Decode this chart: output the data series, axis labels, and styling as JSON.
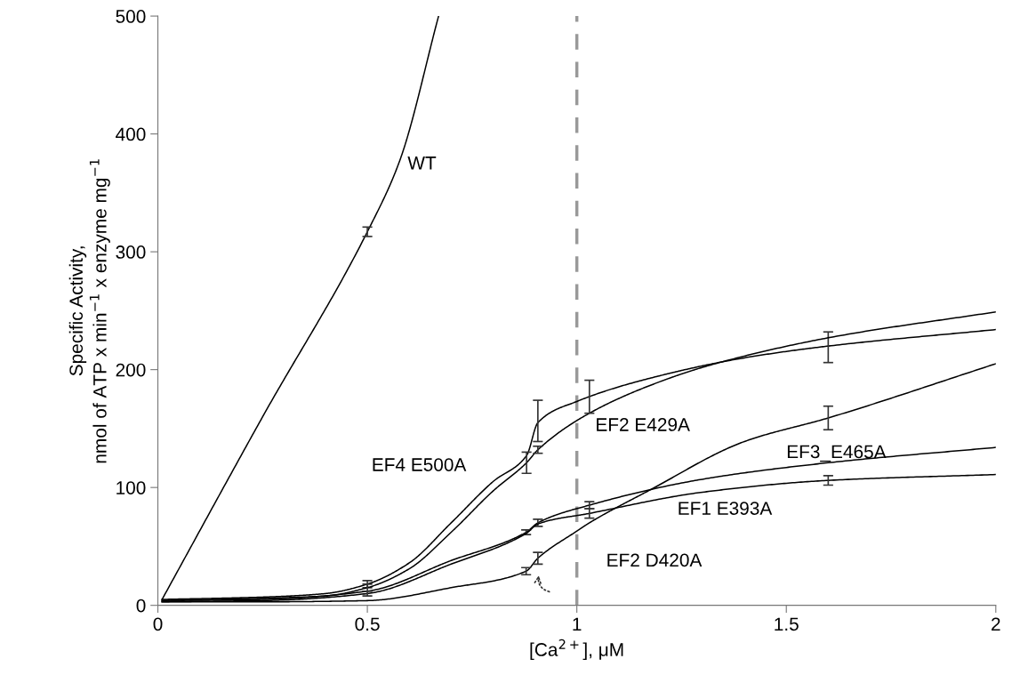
{
  "chart_data": {
    "type": "line",
    "xlabel": "[Ca$^{2+}$], μM",
    "ylabel": "Specific Activity,\nnmol of ATP x min$^{−1}$ x enzyme mg$^{−1}$",
    "xlim": [
      0,
      2
    ],
    "xticks": [
      0,
      0.5,
      1,
      1.5,
      2
    ],
    "ylim": [
      0,
      500
    ],
    "yticks": [
      0,
      100,
      200,
      300,
      400,
      500
    ],
    "grid": false,
    "legend": false,
    "marker": "none",
    "line_style": "solid",
    "series": [
      {
        "name": "WT",
        "color": "#000000",
        "x": [
          0.01,
          0.25,
          0.5,
          0.578,
          0.67
        ],
        "values": [
          5,
          160,
          317,
          378,
          500
        ],
        "errors": [
          null,
          null,
          4,
          null,
          null
        ]
      },
      {
        "name": "EF4 E500A",
        "color": "#000000",
        "x": [
          0.01,
          0.25,
          0.4,
          0.5,
          0.6,
          0.7,
          0.8,
          0.88,
          0.907,
          1.0,
          1.2,
          1.4,
          1.6,
          2.0
        ],
        "values": [
          5,
          7,
          10,
          18,
          36,
          70,
          105,
          127,
          155,
          173,
          195,
          210,
          220,
          234
        ],
        "errors": [
          null,
          null,
          null,
          3,
          null,
          null,
          null,
          null,
          [
            139,
            174
          ],
          null,
          null,
          null,
          [
            206,
            232
          ],
          null
        ]
      },
      {
        "name": "EF2 E429A",
        "color": "#000000",
        "x": [
          0.01,
          0.25,
          0.4,
          0.5,
          0.6,
          0.7,
          0.8,
          0.88,
          0.907,
          1.03,
          1.2,
          1.33,
          1.6,
          2.0
        ],
        "values": [
          4,
          6,
          8,
          15,
          31,
          62,
          97,
          121,
          132,
          163,
          190,
          205,
          227,
          249
        ],
        "errors": [
          null,
          null,
          null,
          3,
          null,
          null,
          null,
          9,
          3,
          [
            163,
            191
          ],
          null,
          null,
          null,
          null
        ]
      },
      {
        "name": "EF3_E465A",
        "color": "#000000",
        "x": [
          0.01,
          0.25,
          0.5,
          0.7,
          0.879,
          0.907,
          1.03,
          1.3,
          1.6,
          2.0
        ],
        "values": [
          4,
          5,
          12,
          38,
          62,
          70,
          85,
          107,
          121,
          134
        ],
        "errors": [
          null,
          null,
          null,
          null,
          2,
          3,
          3,
          null,
          null,
          null
        ]
      },
      {
        "name": "EF1 E393A",
        "color": "#000000",
        "x": [
          0.01,
          0.25,
          0.5,
          0.7,
          0.879,
          0.907,
          1.03,
          1.3,
          1.6,
          2.0
        ],
        "values": [
          3,
          4,
          10,
          35,
          61,
          69,
          78,
          96,
          106,
          111
        ],
        "errors": [
          null,
          null,
          2,
          null,
          null,
          null,
          4,
          null,
          4,
          null
        ]
      },
      {
        "name": "EF2 D420A",
        "color": "#000000",
        "x": [
          0.01,
          0.25,
          0.5,
          0.7,
          0.879,
          0.907,
          1.0,
          1.03,
          1.17,
          1.4,
          1.6,
          2.0
        ],
        "values": [
          3,
          3,
          4,
          15,
          29,
          40,
          63,
          70,
          97,
          139,
          159,
          205
        ],
        "errors": [
          null,
          null,
          null,
          null,
          3,
          5,
          null,
          null,
          null,
          null,
          10,
          null
        ]
      }
    ],
    "ref_lines": [
      {
        "axis": "x",
        "value": 1,
        "color": "#999999",
        "line_style": "dashed"
      }
    ]
  }
}
